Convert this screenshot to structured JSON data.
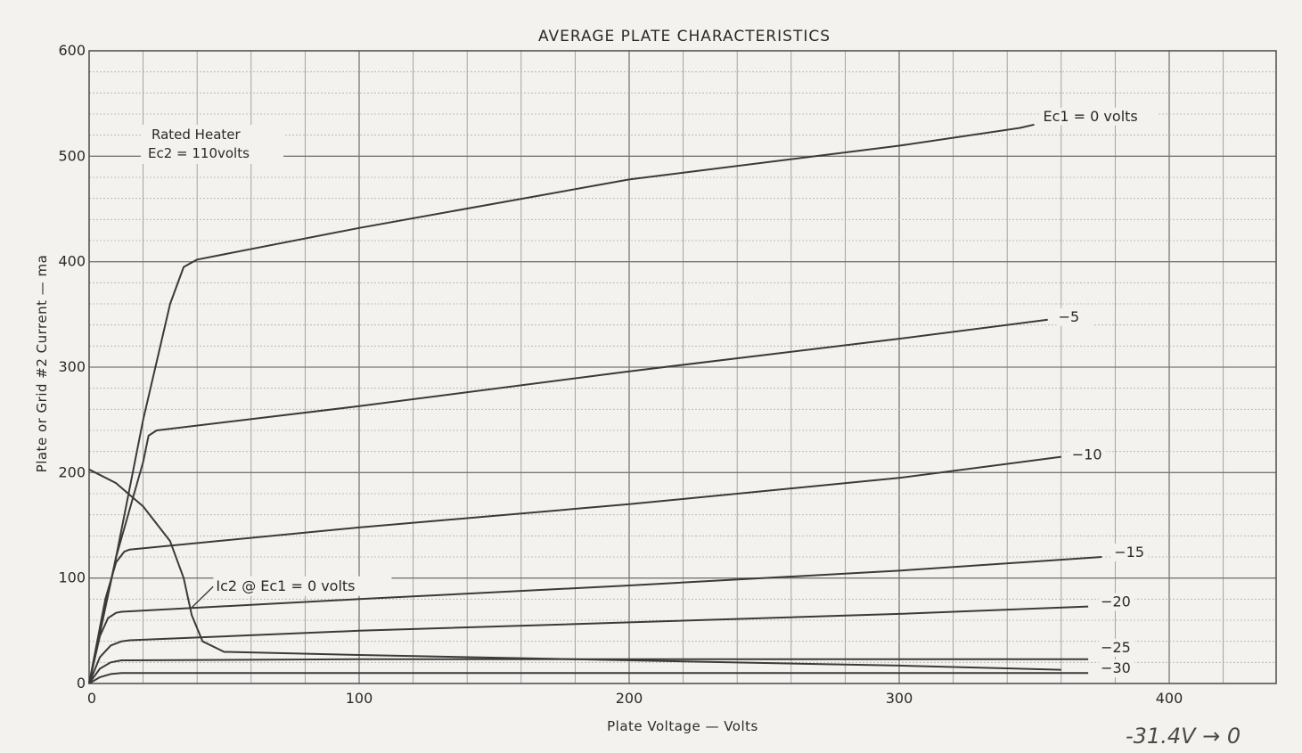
{
  "chart_data": {
    "type": "line",
    "title": "AVERAGE PLATE CHARACTERISTICS",
    "xlabel": "Plate Voltage — Volts",
    "ylabel": "Plate or Grid #2 Current — ma",
    "xlim": [
      0,
      440
    ],
    "ylim": [
      0,
      600
    ],
    "x_ticks": [
      0,
      100,
      200,
      300,
      400
    ],
    "y_ticks": [
      0,
      100,
      200,
      300,
      400,
      500,
      600
    ],
    "grid": true,
    "annotations": {
      "conditions_line1": "Rated Heater",
      "conditions_line2": "Ec2 = 110volts",
      "handwritten": "-31.4V → 0"
    },
    "series": [
      {
        "name": "Ec1 = 0 volts",
        "label": "Ec1 = 0 volts",
        "points": [
          [
            0,
            0
          ],
          [
            10,
            120
          ],
          [
            20,
            250
          ],
          [
            30,
            360
          ],
          [
            35,
            395
          ],
          [
            40,
            402
          ],
          [
            100,
            432
          ],
          [
            200,
            478
          ],
          [
            300,
            510
          ],
          [
            345,
            527
          ],
          [
            350,
            530
          ]
        ]
      },
      {
        "name": "-5",
        "label": "−5",
        "points": [
          [
            0,
            0
          ],
          [
            10,
            120
          ],
          [
            20,
            210
          ],
          [
            22,
            235
          ],
          [
            25,
            240
          ],
          [
            100,
            263
          ],
          [
            200,
            296
          ],
          [
            300,
            327
          ],
          [
            355,
            345
          ]
        ]
      },
      {
        "name": "-10",
        "label": "−10",
        "points": [
          [
            0,
            0
          ],
          [
            6,
            80
          ],
          [
            10,
            115
          ],
          [
            13,
            125
          ],
          [
            15,
            127
          ],
          [
            100,
            148
          ],
          [
            200,
            170
          ],
          [
            300,
            195
          ],
          [
            360,
            215
          ]
        ]
      },
      {
        "name": "-15",
        "label": "−15",
        "points": [
          [
            0,
            0
          ],
          [
            4,
            45
          ],
          [
            7,
            62
          ],
          [
            10,
            67
          ],
          [
            12,
            68
          ],
          [
            100,
            80
          ],
          [
            200,
            93
          ],
          [
            300,
            107
          ],
          [
            375,
            120
          ]
        ]
      },
      {
        "name": "-20",
        "label": "−20",
        "points": [
          [
            0,
            0
          ],
          [
            4,
            25
          ],
          [
            8,
            36
          ],
          [
            12,
            40
          ],
          [
            15,
            41
          ],
          [
            100,
            50
          ],
          [
            200,
            58
          ],
          [
            300,
            66
          ],
          [
            370,
            73
          ]
        ]
      },
      {
        "name": "-25",
        "label": "−25",
        "points": [
          [
            0,
            0
          ],
          [
            4,
            14
          ],
          [
            8,
            20
          ],
          [
            12,
            22
          ],
          [
            15,
            22
          ],
          [
            100,
            23
          ],
          [
            200,
            23
          ],
          [
            300,
            23
          ],
          [
            370,
            23
          ]
        ]
      },
      {
        "name": "-30",
        "label": "−30",
        "points": [
          [
            0,
            0
          ],
          [
            4,
            6
          ],
          [
            8,
            9
          ],
          [
            12,
            10
          ],
          [
            15,
            10
          ],
          [
            100,
            10
          ],
          [
            200,
            10
          ],
          [
            300,
            10
          ],
          [
            370,
            10
          ]
        ]
      },
      {
        "name": "Ic2 @ Ec1 = 0 volts",
        "label": "Ic2 @ Ec1 = 0 volts",
        "points": [
          [
            0,
            203
          ],
          [
            10,
            190
          ],
          [
            20,
            168
          ],
          [
            30,
            135
          ],
          [
            35,
            100
          ],
          [
            38,
            65
          ],
          [
            42,
            40
          ],
          [
            50,
            30
          ],
          [
            100,
            27
          ],
          [
            200,
            22
          ],
          [
            300,
            17
          ],
          [
            360,
            13
          ]
        ]
      }
    ]
  }
}
